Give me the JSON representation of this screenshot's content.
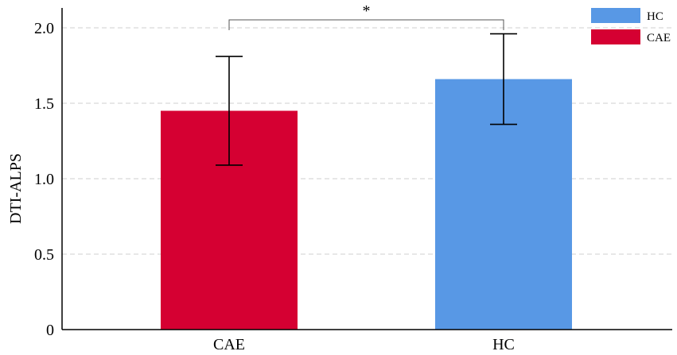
{
  "chart_data": {
    "type": "bar",
    "categories": [
      "CAE",
      "HC"
    ],
    "values": [
      1.45,
      1.66
    ],
    "error": [
      0.36,
      0.3
    ],
    "colors": [
      "#D50032",
      "#5898E5"
    ],
    "ylabel": "DTI-ALPS",
    "xlabel": "",
    "ylim": [
      0,
      2.1
    ],
    "yticks": [
      0,
      0.5,
      1.0,
      1.5,
      2.0
    ],
    "ytick_labels": [
      "0",
      "0.5",
      "1.0",
      "1.5",
      "2.0"
    ],
    "grid": true,
    "legend": {
      "placement": "top-right",
      "entries": [
        {
          "label": "HC",
          "color": "#5898E5"
        },
        {
          "label": "CAE",
          "color": "#D50032"
        }
      ]
    },
    "annotation": {
      "text": "*",
      "between": [
        "CAE",
        "HC"
      ]
    }
  }
}
